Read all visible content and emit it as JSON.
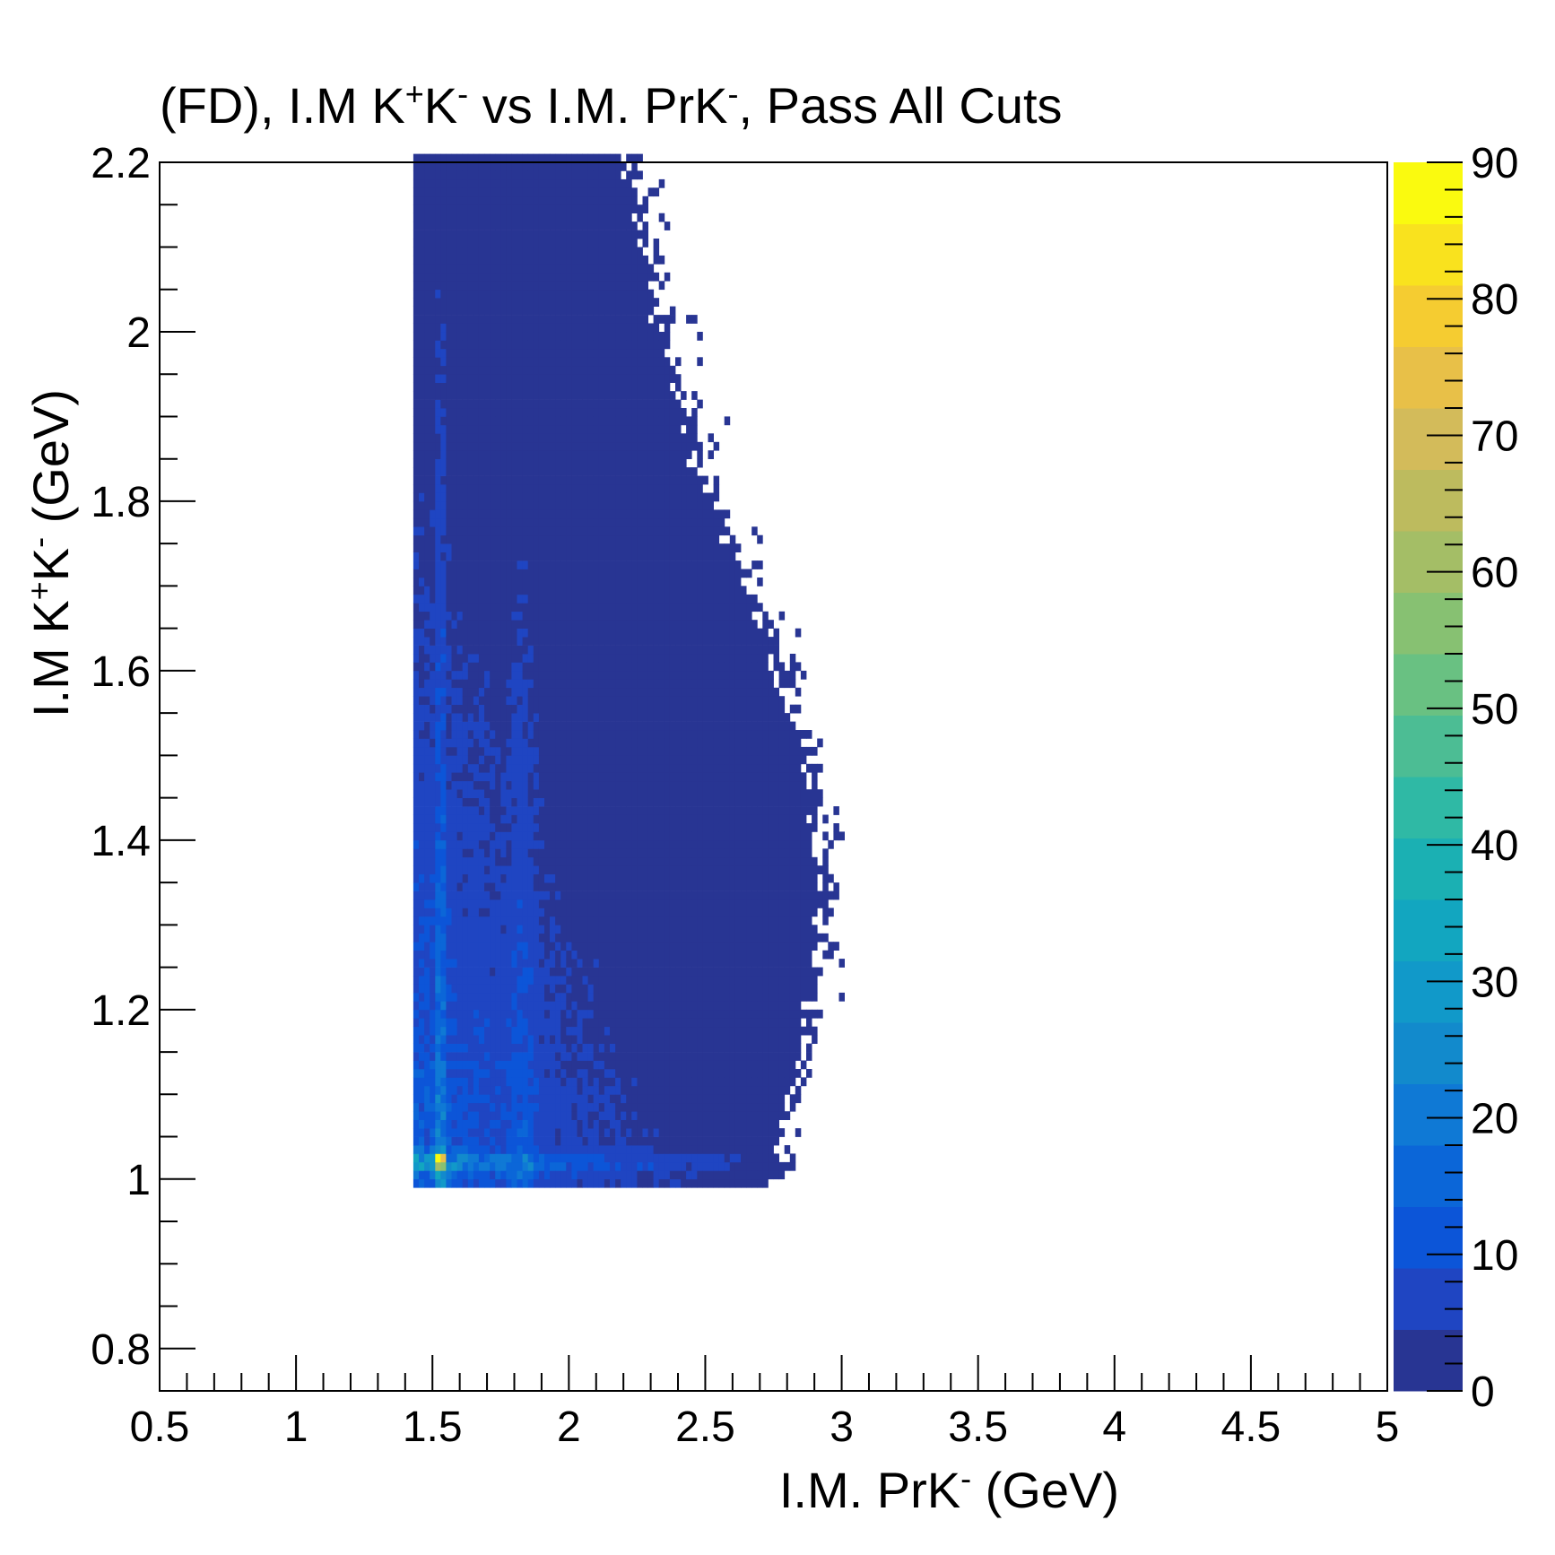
{
  "chart_data": {
    "type": "heatmap",
    "title_parts": {
      "t1": "(FD), I.M K",
      "sup1": "+",
      "t2": "K",
      "sup2": "-",
      "t3": " vs I.M. PrK",
      "sup3": "-",
      "t4": ", Pass All Cuts"
    },
    "xlabel_parts": {
      "main": "I.M. PrK",
      "sup": "-",
      "tail": " (GeV)"
    },
    "ylabel_parts": {
      "t1": "I.M K",
      "sup1": "+",
      "t2": "K",
      "sup2": "-",
      "tail": " (GeV)"
    },
    "xlim": [
      0.5,
      5.0
    ],
    "ylim": [
      0.75,
      2.2
    ],
    "x_ticks": [
      "0.5",
      "1",
      "1.5",
      "2",
      "2.5",
      "3",
      "3.5",
      "4",
      "4.5",
      "5"
    ],
    "y_ticks": [
      "0.8",
      "1",
      "1.2",
      "1.4",
      "1.6",
      "1.8",
      "2",
      "2.2"
    ],
    "z_range": [
      0,
      90
    ],
    "colorbar_ticks": [
      "0",
      "10",
      "20",
      "30",
      "40",
      "50",
      "60",
      "70",
      "80",
      "90"
    ],
    "palette": [
      "#283593",
      "#1f45c2",
      "#0c55d8",
      "#0b66d8",
      "#0f79d5",
      "#128acc",
      "#1199c9",
      "#12a6c0",
      "#1bb0b3",
      "#2fb9a5",
      "#4cbd94",
      "#69c182",
      "#87c172",
      "#a4be66",
      "#bdbb5e",
      "#d3bb5a",
      "#e8c048",
      "#f5cc31",
      "#f9e21e",
      "#fafa0f"
    ],
    "bin_width_x": 0.02,
    "bin_width_y": 0.01,
    "density_model": {
      "x_edge": 1.43,
      "y_edge": 0.99,
      "sharp_peak": [
        1.52,
        1.015,
        90
      ],
      "x_ridge_gev": 1.52,
      "y_ridge_gev": 1.015,
      "lambda_1520_ridge_gev": 1.82,
      "notes": "distribution bounded roughly by x in [1.43, 3.1], y in [0.99, 2.2]; density decays with x and y"
    }
  }
}
